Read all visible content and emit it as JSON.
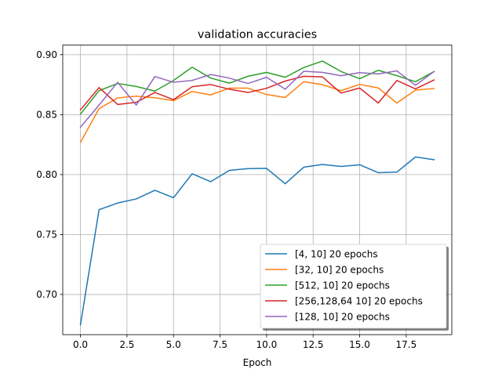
{
  "chart_data": {
    "type": "line",
    "title": "validation accuracies",
    "xlabel": "Epoch",
    "ylabel": "",
    "xlim": [
      -0.95,
      19.95
    ],
    "ylim": [
      0.6665,
      0.908
    ],
    "x_ticks": [
      0,
      2.5,
      5,
      7.5,
      10,
      12.5,
      15,
      17.5
    ],
    "x_tick_labels": [
      "0.0",
      "2.5",
      "5.0",
      "7.5",
      "10.0",
      "12.5",
      "15.0",
      "17.5"
    ],
    "y_ticks": [
      0.7,
      0.75,
      0.8,
      0.85,
      0.9
    ],
    "y_tick_labels": [
      "0.70",
      "0.75",
      "0.80",
      "0.85",
      "0.90"
    ],
    "grid": true,
    "legend_position": "lower-right",
    "x": [
      0,
      1,
      2,
      3,
      4,
      5,
      6,
      7,
      8,
      9,
      10,
      11,
      12,
      13,
      14,
      15,
      16,
      17,
      18,
      19
    ],
    "series": [
      {
        "name": "[4, 10] 20 epochs",
        "color": "#1f77b4",
        "values": [
          0.6747,
          0.7707,
          0.7763,
          0.7797,
          0.7869,
          0.7807,
          0.8007,
          0.7941,
          0.8035,
          0.805,
          0.8052,
          0.7924,
          0.8062,
          0.8084,
          0.8068,
          0.8082,
          0.8016,
          0.8021,
          0.8147,
          0.8124
        ]
      },
      {
        "name": "[32, 10] 20 epochs",
        "color": "#ff7f0e",
        "values": [
          0.8269,
          0.855,
          0.864,
          0.8654,
          0.8641,
          0.8617,
          0.8693,
          0.8665,
          0.8721,
          0.8721,
          0.8668,
          0.8643,
          0.8775,
          0.875,
          0.87,
          0.8752,
          0.8723,
          0.8597,
          0.8705,
          0.8718
        ]
      },
      {
        "name": "[512, 10] 20 epochs",
        "color": "#2ca02c",
        "values": [
          0.8505,
          0.87,
          0.876,
          0.8735,
          0.8697,
          0.8785,
          0.8896,
          0.8805,
          0.8763,
          0.882,
          0.8853,
          0.8812,
          0.8893,
          0.8947,
          0.886,
          0.88,
          0.887,
          0.8825,
          0.8775,
          0.886
        ]
      },
      {
        "name": "[256,128,64 10] 20 epochs",
        "color": "#d62728",
        "values": [
          0.854,
          0.8726,
          0.8585,
          0.8603,
          0.8685,
          0.8625,
          0.8733,
          0.8751,
          0.8712,
          0.8685,
          0.872,
          0.878,
          0.882,
          0.8815,
          0.868,
          0.8722,
          0.8597,
          0.8785,
          0.8715,
          0.879
        ]
      },
      {
        "name": "[128, 10] 20 epochs",
        "color": "#9467bd",
        "values": [
          0.8395,
          0.858,
          0.877,
          0.858,
          0.8818,
          0.877,
          0.8785,
          0.8835,
          0.8805,
          0.876,
          0.8812,
          0.8712,
          0.8862,
          0.8853,
          0.8825,
          0.885,
          0.884,
          0.8865,
          0.8745,
          0.886
        ]
      }
    ]
  }
}
